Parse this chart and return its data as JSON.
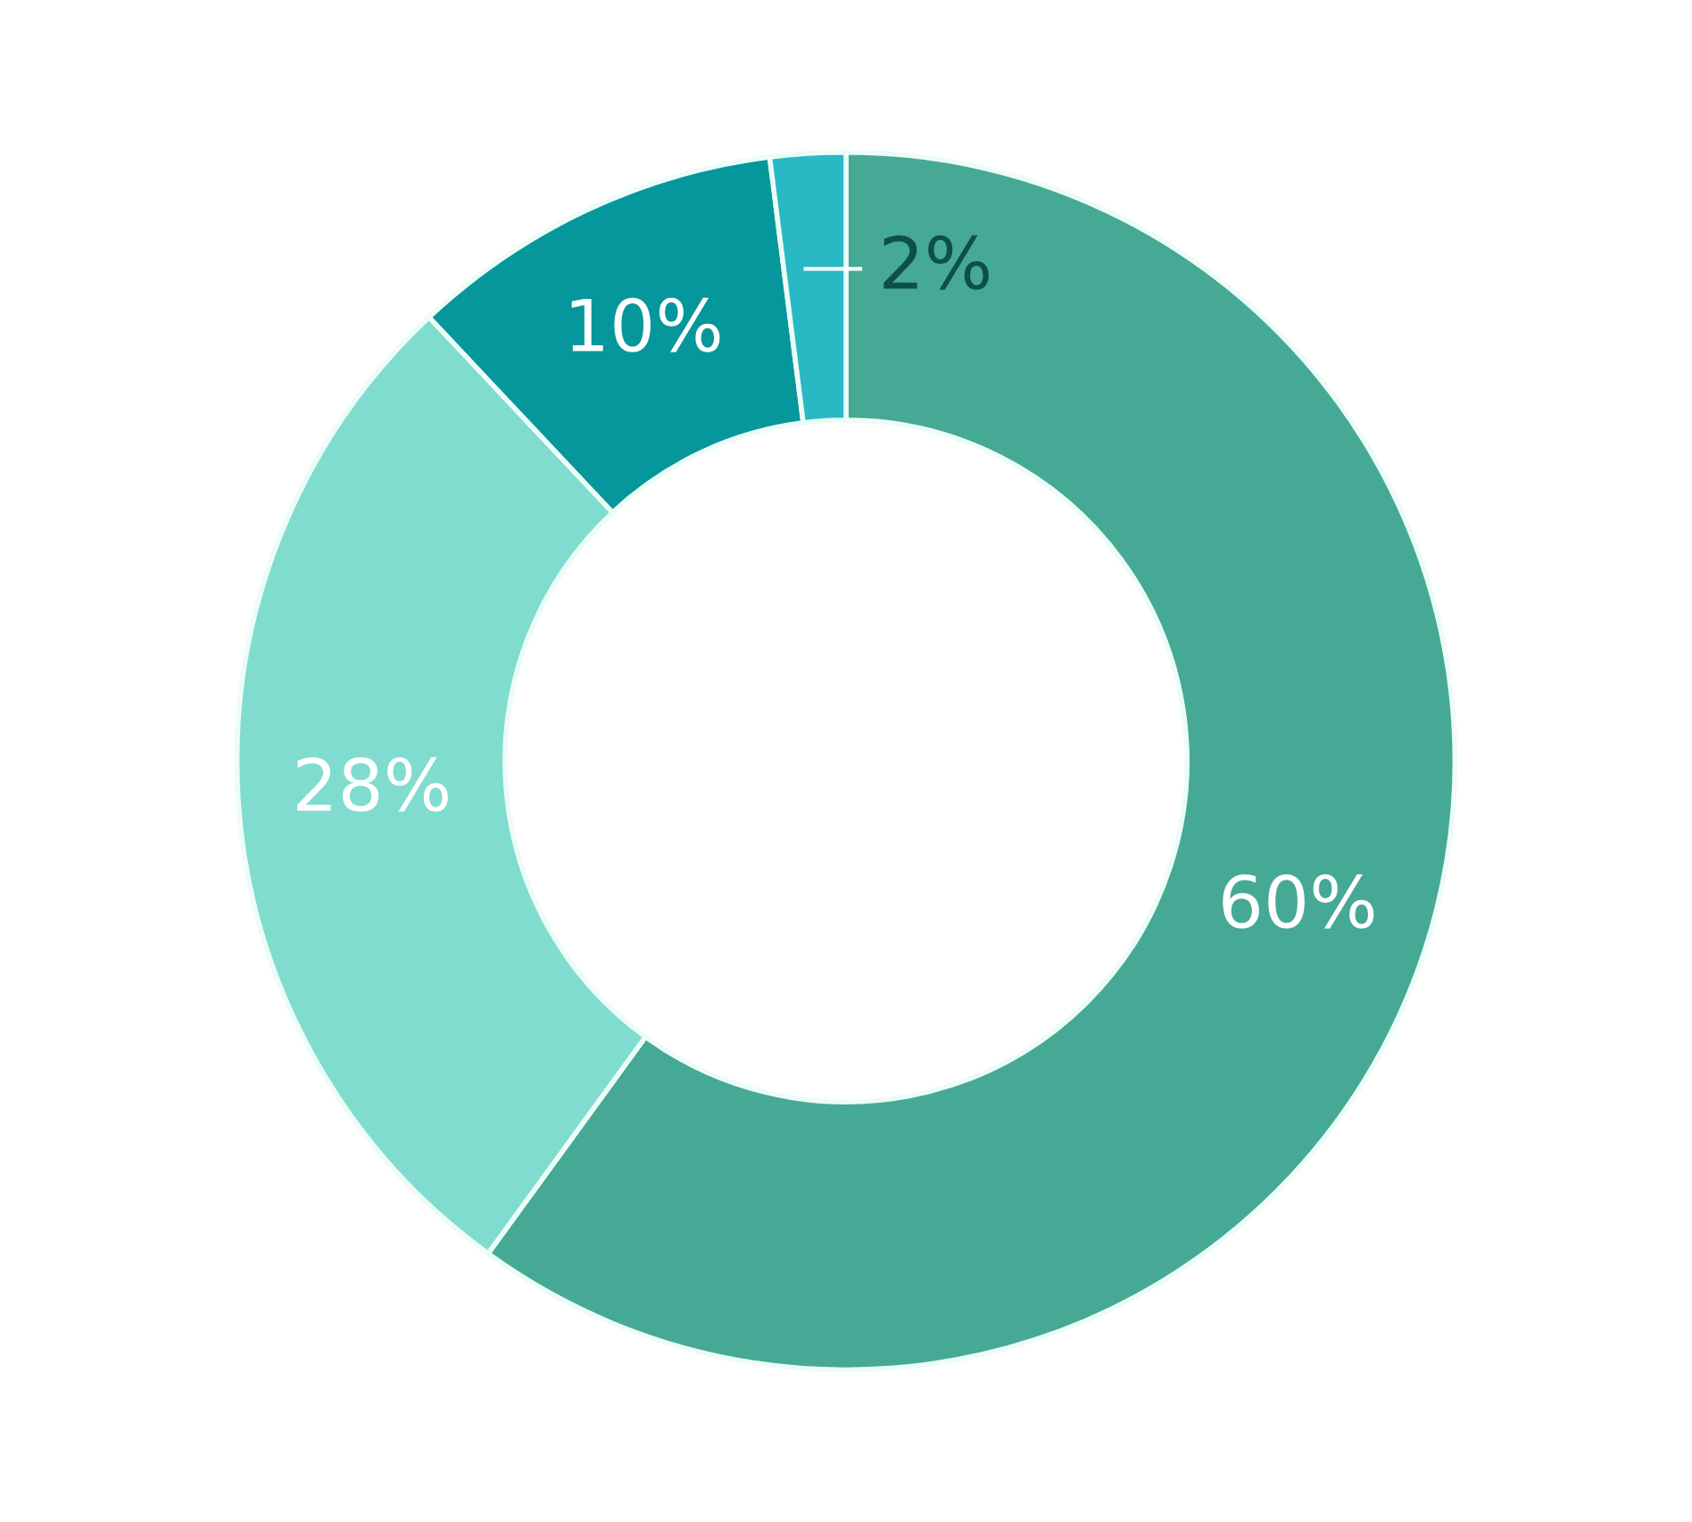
{
  "chart_data": {
    "type": "donut",
    "categories": [
      null,
      null,
      null,
      null
    ],
    "values": [
      60,
      28,
      10,
      2
    ],
    "colors": [
      "#45a995",
      "#7fdccf",
      "#05979c",
      "#29b9c4"
    ],
    "value_labels": [
      "60%",
      "28%",
      "10%",
      "2%"
    ]
  }
}
